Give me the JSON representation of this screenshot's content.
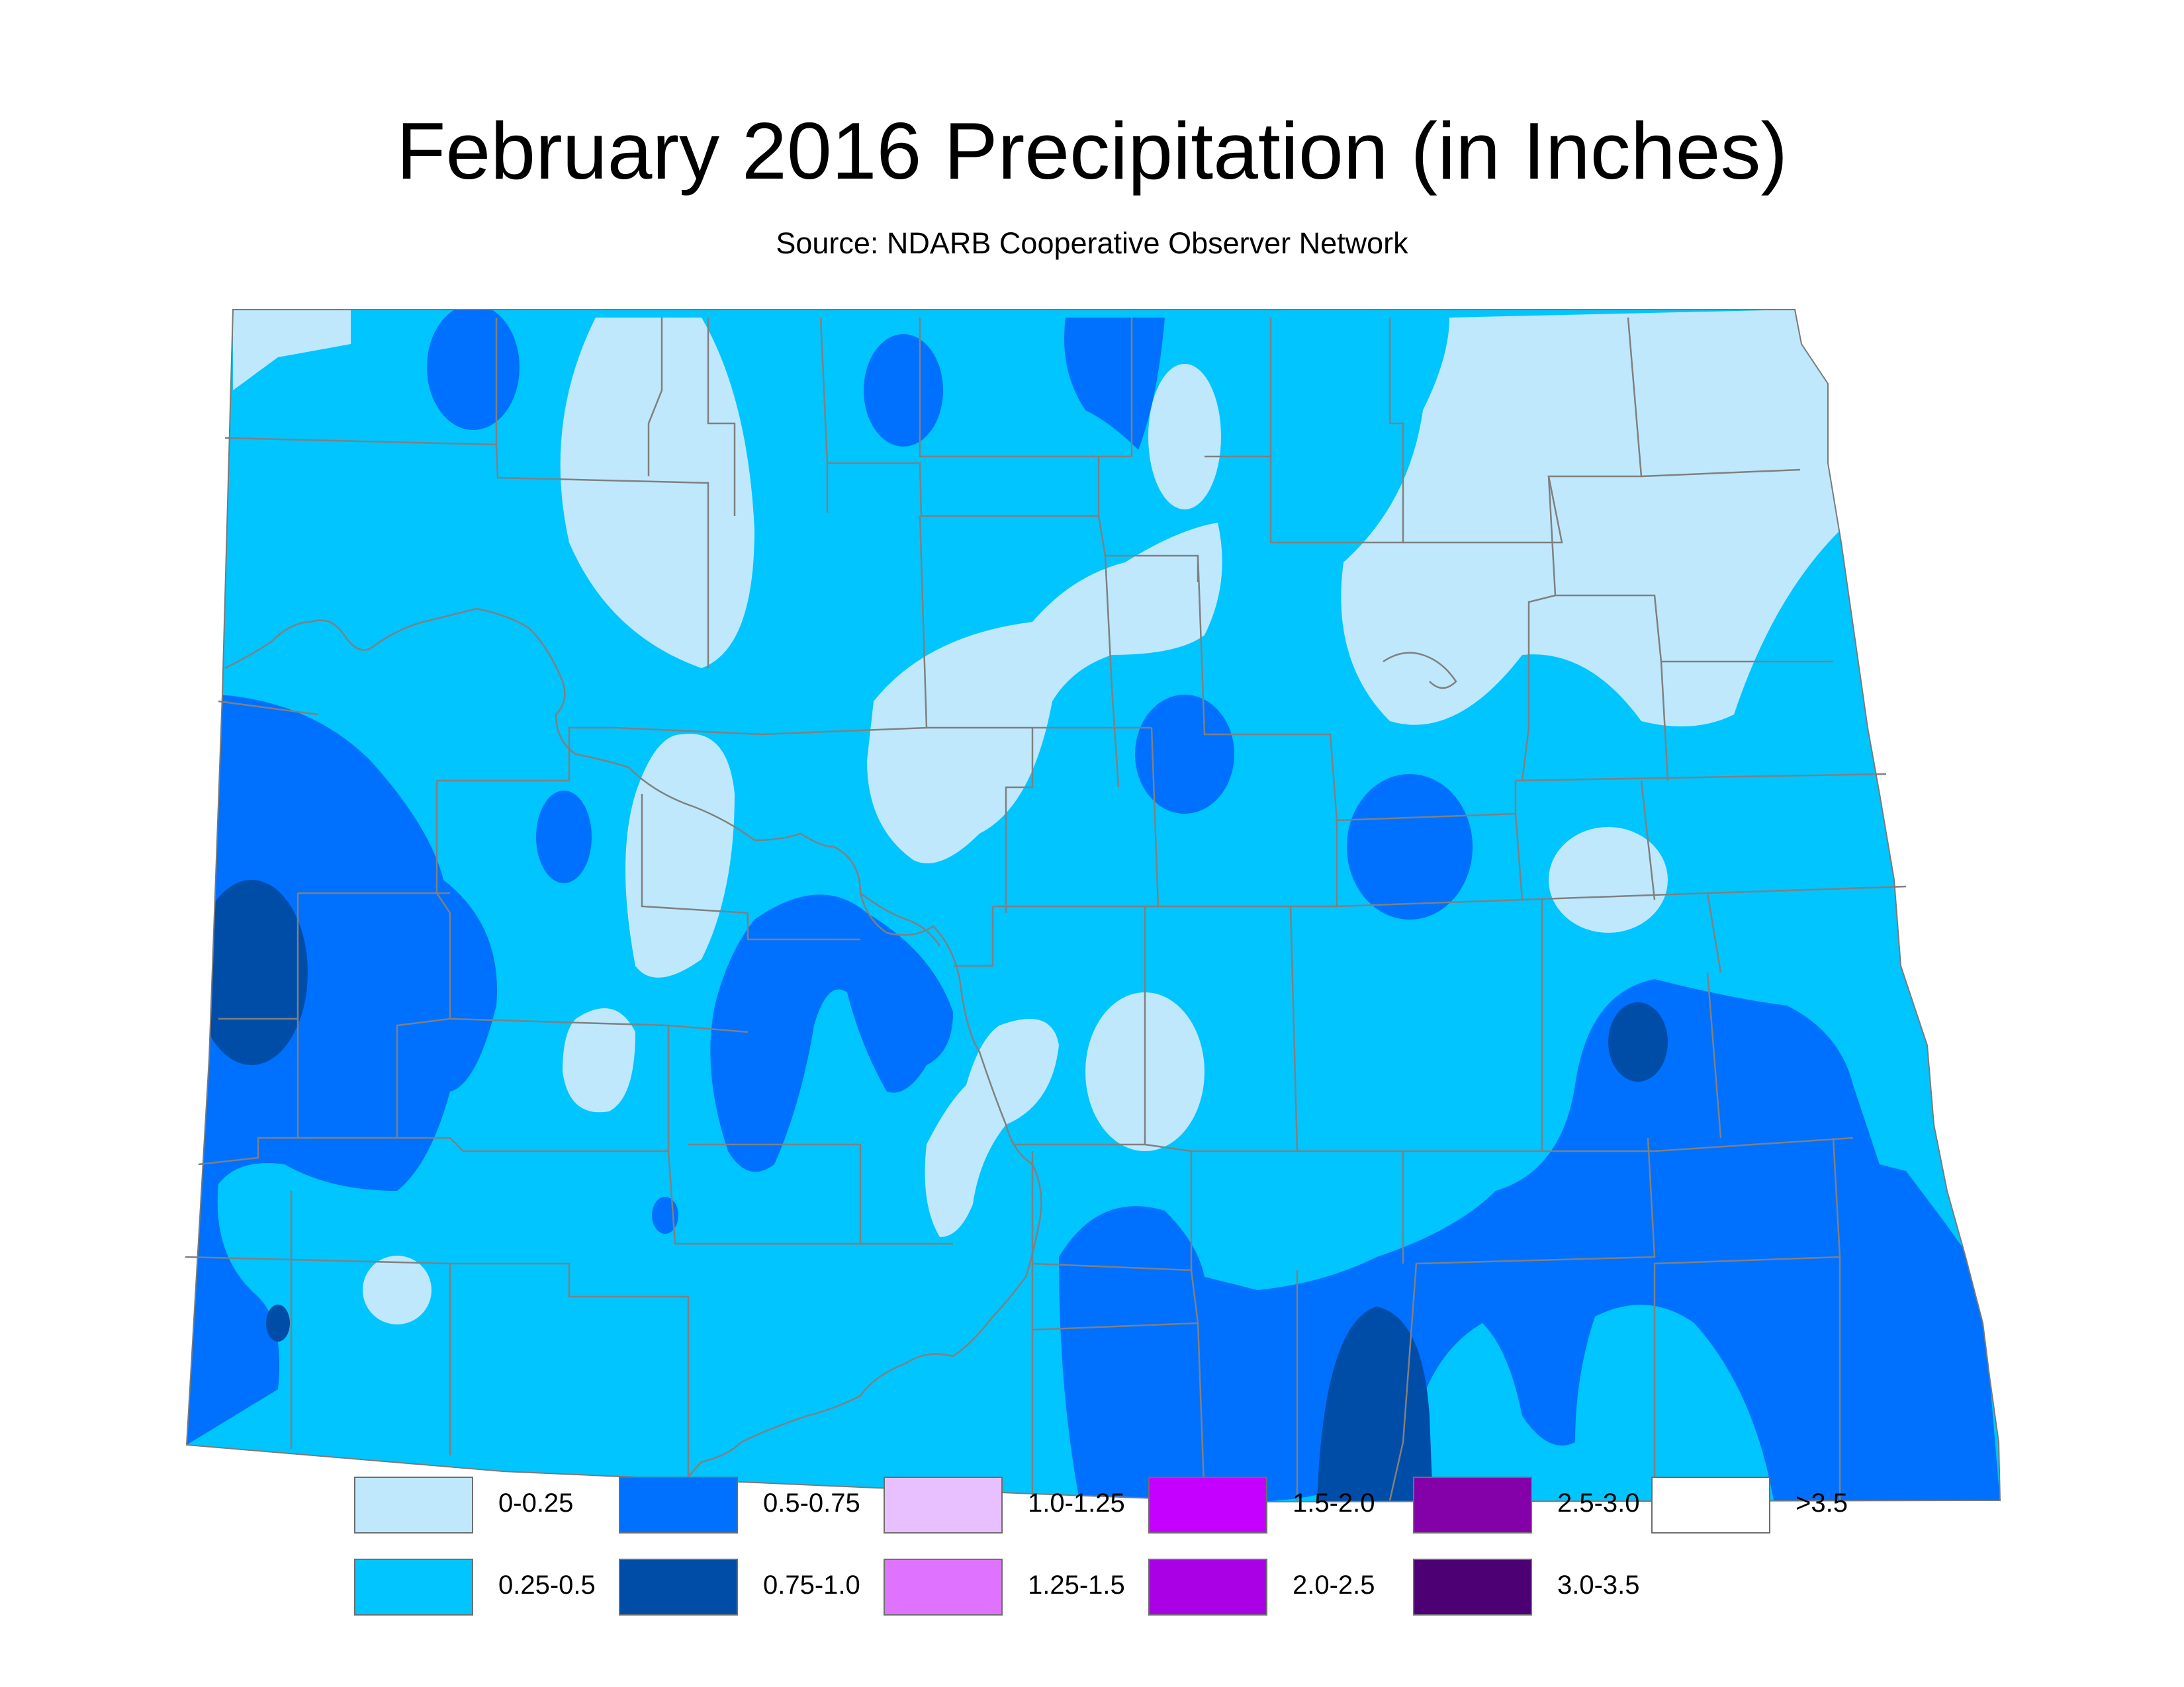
{
  "title": "February 2016 Precipitation (in Inches)",
  "subtitle": "Source: NDARB Cooperative Observer Network",
  "colors": {
    "background": "#ffffff",
    "county_border": "#808080",
    "river": "#808080",
    "state_outline": "#7a7a7a"
  },
  "legend": {
    "items": [
      {
        "label": "0-0.25",
        "color": "#bfe8fc"
      },
      {
        "label": "0.25-0.5",
        "color": "#00c5ff"
      },
      {
        "label": "0.5-0.75",
        "color": "#0070ff"
      },
      {
        "label": "0.75-1.0",
        "color": "#004da8"
      },
      {
        "label": "1.0-1.25",
        "color": "#e8bfff"
      },
      {
        "label": "1.25-1.5",
        "color": "#df73ff"
      },
      {
        "label": "1.5-2.0",
        "color": "#c500ff"
      },
      {
        "label": "2.0-2.5",
        "color": "#a900e6"
      },
      {
        "label": "2.5-3.0",
        "color": "#8400a8"
      },
      {
        "label": "3.0-3.5",
        "color": "#4c0073"
      },
      {
        "label": ">3.5",
        "color": "#ffffff"
      }
    ]
  }
}
